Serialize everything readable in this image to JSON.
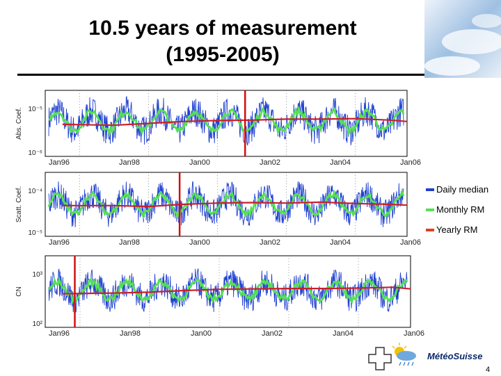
{
  "slide": {
    "title_line1": "10.5 years of measurement",
    "title_line2": "(1995-2005)",
    "page_number": "4",
    "logo_text": "MétéoSuisse"
  },
  "legend": [
    {
      "label": "Daily median",
      "color": "#1f3fd0"
    },
    {
      "label": "Monthly RM",
      "color": "#55e055"
    },
    {
      "label": "Yearly RM",
      "color": "#c8202a"
    }
  ],
  "chart_data": [
    {
      "type": "line",
      "title": "",
      "ylabel": "Abs. Coef.",
      "y_scale": "log",
      "y_tick_labels": [
        "10⁻⁵",
        "10⁻⁶"
      ],
      "x_tick_labels": [
        "Jan96",
        "Jan98",
        "Jan00",
        "Jan02",
        "Jan04",
        "Jan06"
      ],
      "xlim": [
        1995.0,
        2005.5
      ],
      "ylim_log10": [
        -6.1,
        -4.7
      ],
      "marker_year": 2000.8,
      "series": [
        {
          "name": "Daily median",
          "center": -5.35,
          "amp": 0.2,
          "noise": 0.32
        },
        {
          "name": "Monthly RM",
          "center": -5.35,
          "amp": 0.2,
          "noise": 0.07
        },
        {
          "name": "Yearly RM",
          "values_x": [
            1995.5,
            1997,
            1998,
            1999,
            2000,
            2001,
            2002,
            2003,
            2004,
            2005,
            2005.5
          ],
          "values_log10": [
            -5.42,
            -5.44,
            -5.4,
            -5.36,
            -5.34,
            -5.33,
            -5.31,
            -5.31,
            -5.3,
            -5.33,
            -5.36
          ]
        }
      ]
    },
    {
      "type": "line",
      "title": "",
      "ylabel": "Scatt. Coef.",
      "y_scale": "log",
      "y_tick_labels": [
        "10⁻⁴",
        "10⁻⁵"
      ],
      "x_tick_labels": [
        "Jan96",
        "Jan98",
        "Jan00",
        "Jan02",
        "Jan04",
        "Jan06"
      ],
      "xlim": [
        1995.0,
        2005.5
      ],
      "ylim_log10": [
        -5.3,
        -3.8
      ],
      "marker_year": 1998.9,
      "series": [
        {
          "name": "Daily median",
          "center": -4.55,
          "amp": 0.22,
          "noise": 0.33
        },
        {
          "name": "Monthly RM",
          "center": -4.55,
          "amp": 0.22,
          "noise": 0.07
        },
        {
          "name": "Yearly RM",
          "values_x": [
            1995.5,
            1997,
            1998,
            1999,
            2000,
            2001,
            2002,
            2003,
            2004,
            2005,
            2005.5
          ],
          "values_log10": [
            -4.58,
            -4.58,
            -4.6,
            -4.55,
            -4.52,
            -4.51,
            -4.52,
            -4.5,
            -4.53,
            -4.55,
            -4.57
          ]
        }
      ]
    },
    {
      "type": "line",
      "title": "",
      "ylabel": "CN",
      "y_scale": "log",
      "y_tick_labels": [
        "10³",
        "10²"
      ],
      "x_tick_labels": [
        "Jan96",
        "Jan98",
        "Jan00",
        "Jan02",
        "Jan04",
        "Jan06"
      ],
      "xlim": [
        1995.0,
        2005.5
      ],
      "ylim_log10": [
        1.8,
        3.55
      ],
      "marker_year": 1995.85,
      "series": [
        {
          "name": "Daily median",
          "center": 2.7,
          "amp": 0.2,
          "noise": 0.35
        },
        {
          "name": "Monthly RM",
          "center": 2.7,
          "amp": 0.2,
          "noise": 0.08
        },
        {
          "name": "Yearly RM",
          "values_x": [
            1995.5,
            1997,
            1998,
            1999,
            2000,
            2001,
            2002,
            2003,
            2004,
            2005,
            2005.5
          ],
          "values_log10": [
            2.62,
            2.64,
            2.66,
            2.7,
            2.73,
            2.74,
            2.75,
            2.75,
            2.76,
            2.78,
            2.74
          ]
        }
      ]
    }
  ]
}
